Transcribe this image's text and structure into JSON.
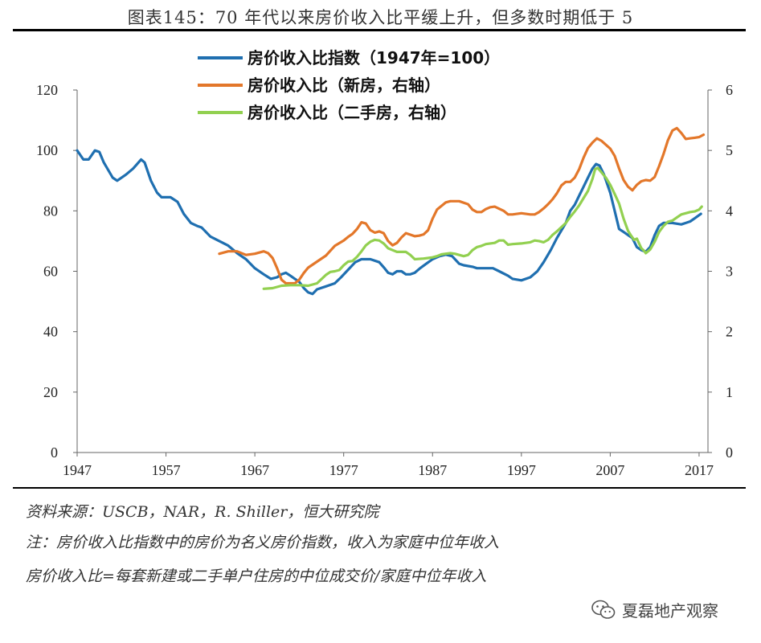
{
  "title": "图表145：70 年代以来房价收入比平缓上升，但多数时期低于 5",
  "source": "资料来源：USCB，NAR，R. Shiller，恒大研究院",
  "note1": "注：房价收入比指数中的房价为名义房价指数，收入为家庭中位年收入",
  "note2": "房价收入比=每套新建或二手单户住房的中位成交价/家庭中位年收入",
  "watermark": "夏磊地产观察",
  "chart_data": {
    "type": "line",
    "x_range": [
      1947,
      2018
    ],
    "x_ticks": [
      1947,
      1957,
      1967,
      1977,
      1987,
      1997,
      2007,
      2017
    ],
    "y_left": {
      "range": [
        0,
        120
      ],
      "ticks": [
        0,
        20,
        40,
        60,
        80,
        100,
        120
      ]
    },
    "y_right": {
      "range": [
        0,
        6
      ],
      "ticks": [
        0,
        1,
        2,
        3,
        4,
        5,
        6
      ]
    },
    "grid": false,
    "legend_position": "top-center",
    "series": [
      {
        "name": "房价收入比指数（1947年=100）",
        "axis": "left",
        "color": "#1f6fb0",
        "points": [
          [
            1947,
            100
          ],
          [
            1947.7,
            97
          ],
          [
            1948.3,
            97
          ],
          [
            1949,
            100
          ],
          [
            1949.5,
            99.5
          ],
          [
            1950,
            96
          ],
          [
            1951,
            91
          ],
          [
            1951.5,
            90
          ],
          [
            1952.5,
            92
          ],
          [
            1953.3,
            94
          ],
          [
            1954.2,
            97
          ],
          [
            1954.6,
            96
          ],
          [
            1955.3,
            90
          ],
          [
            1956,
            86
          ],
          [
            1956.5,
            84.5
          ],
          [
            1957.5,
            84.5
          ],
          [
            1958.3,
            83
          ],
          [
            1959,
            79
          ],
          [
            1959.8,
            76
          ],
          [
            1960.5,
            75
          ],
          [
            1961,
            74.5
          ],
          [
            1961.5,
            73
          ],
          [
            1962,
            71.5
          ],
          [
            1963,
            70
          ],
          [
            1964,
            68.5
          ],
          [
            1965,
            66
          ],
          [
            1966,
            64
          ],
          [
            1967,
            61
          ],
          [
            1968,
            59
          ],
          [
            1968.8,
            57.5
          ],
          [
            1969.5,
            58
          ],
          [
            1970,
            59
          ],
          [
            1970.5,
            59.5
          ],
          [
            1971,
            58.5
          ],
          [
            1971.5,
            57.5
          ],
          [
            1972,
            56.5
          ],
          [
            1972.5,
            54.5
          ],
          [
            1973,
            53
          ],
          [
            1973.5,
            52.5
          ],
          [
            1974,
            54
          ],
          [
            1975,
            55
          ],
          [
            1976,
            56
          ],
          [
            1976.7,
            58
          ],
          [
            1977.5,
            60.5
          ],
          [
            1978.3,
            63
          ],
          [
            1979,
            64
          ],
          [
            1980,
            64
          ],
          [
            1981,
            63
          ],
          [
            1981.6,
            61
          ],
          [
            1982,
            59.5
          ],
          [
            1982.5,
            59
          ],
          [
            1983,
            60
          ],
          [
            1983.5,
            60
          ],
          [
            1984,
            59
          ],
          [
            1984.5,
            59
          ],
          [
            1985,
            59.5
          ],
          [
            1985.6,
            61
          ],
          [
            1986.3,
            62.5
          ],
          [
            1987,
            64
          ],
          [
            1987.8,
            65
          ],
          [
            1988.5,
            65.5
          ],
          [
            1989.2,
            65
          ],
          [
            1990,
            62.5
          ],
          [
            1990.5,
            62
          ],
          [
            1991.5,
            61.5
          ],
          [
            1992,
            61
          ],
          [
            1993,
            61
          ],
          [
            1993.8,
            61
          ],
          [
            1994.5,
            60
          ],
          [
            1995.5,
            58.5
          ],
          [
            1996,
            57.5
          ],
          [
            1997,
            57
          ],
          [
            1998,
            58
          ],
          [
            1998.8,
            60
          ],
          [
            1999.5,
            63
          ],
          [
            2000.3,
            67
          ],
          [
            2001,
            71
          ],
          [
            2002,
            76
          ],
          [
            2002.5,
            80
          ],
          [
            2003,
            82
          ],
          [
            2003.5,
            85
          ],
          [
            2004,
            88
          ],
          [
            2004.5,
            91
          ],
          [
            2005,
            94
          ],
          [
            2005.4,
            95.5
          ],
          [
            2005.8,
            95
          ],
          [
            2006.3,
            92
          ],
          [
            2007,
            86
          ],
          [
            2007.5,
            80
          ],
          [
            2008,
            74
          ],
          [
            2008.5,
            73
          ],
          [
            2009,
            72
          ],
          [
            2009.5,
            71
          ],
          [
            2010,
            68
          ],
          [
            2010.5,
            67
          ],
          [
            2011,
            66.5
          ],
          [
            2011.5,
            68
          ],
          [
            2012,
            72
          ],
          [
            2012.5,
            75
          ],
          [
            2013,
            76
          ],
          [
            2013.5,
            76
          ],
          [
            2014,
            76
          ],
          [
            2015,
            75.5
          ],
          [
            2015.5,
            76
          ],
          [
            2016,
            76.5
          ],
          [
            2016.5,
            77.5
          ],
          [
            2017.2,
            79
          ]
        ]
      },
      {
        "name": "房价收入比（新房，右轴）",
        "axis": "right",
        "color": "#e3772a",
        "points": [
          [
            1963,
            3.29
          ],
          [
            1964,
            3.33
          ],
          [
            1965,
            3.33
          ],
          [
            1966,
            3.27
          ],
          [
            1967,
            3.29
          ],
          [
            1967.5,
            3.31
          ],
          [
            1968,
            3.33
          ],
          [
            1968.5,
            3.3
          ],
          [
            1969,
            3.22
          ],
          [
            1969.5,
            3.05
          ],
          [
            1970,
            2.86
          ],
          [
            1970.5,
            2.8
          ],
          [
            1971,
            2.8
          ],
          [
            1971.5,
            2.8
          ],
          [
            1972,
            2.86
          ],
          [
            1972.5,
            2.97
          ],
          [
            1973,
            3.06
          ],
          [
            1974,
            3.16
          ],
          [
            1975,
            3.26
          ],
          [
            1975.5,
            3.34
          ],
          [
            1976,
            3.42
          ],
          [
            1977,
            3.51
          ],
          [
            1977.5,
            3.57
          ],
          [
            1978,
            3.62
          ],
          [
            1978.5,
            3.7
          ],
          [
            1979,
            3.81
          ],
          [
            1979.5,
            3.79
          ],
          [
            1980,
            3.68
          ],
          [
            1980.5,
            3.64
          ],
          [
            1981,
            3.66
          ],
          [
            1981.5,
            3.63
          ],
          [
            1982,
            3.5
          ],
          [
            1982.5,
            3.43
          ],
          [
            1983,
            3.47
          ],
          [
            1983.5,
            3.56
          ],
          [
            1984,
            3.63
          ],
          [
            1985,
            3.58
          ],
          [
            1985.5,
            3.59
          ],
          [
            1986,
            3.61
          ],
          [
            1986.5,
            3.68
          ],
          [
            1987,
            3.87
          ],
          [
            1987.5,
            4.02
          ],
          [
            1988,
            4.08
          ],
          [
            1988.5,
            4.14
          ],
          [
            1989,
            4.16
          ],
          [
            1990,
            4.16
          ],
          [
            1991,
            4.11
          ],
          [
            1991.5,
            4.02
          ],
          [
            1992,
            3.98
          ],
          [
            1992.5,
            3.98
          ],
          [
            1993,
            4.03
          ],
          [
            1993.5,
            4.06
          ],
          [
            1994,
            4.07
          ],
          [
            1995,
            4.0
          ],
          [
            1995.5,
            3.94
          ],
          [
            1996,
            3.94
          ],
          [
            1997,
            3.96
          ],
          [
            1998,
            3.94
          ],
          [
            1998.5,
            3.94
          ],
          [
            1999,
            3.98
          ],
          [
            1999.5,
            4.04
          ],
          [
            2000,
            4.11
          ],
          [
            2000.5,
            4.19
          ],
          [
            2001,
            4.29
          ],
          [
            2001.5,
            4.42
          ],
          [
            2002,
            4.48
          ],
          [
            2002.5,
            4.48
          ],
          [
            2003,
            4.55
          ],
          [
            2003.5,
            4.69
          ],
          [
            2004,
            4.88
          ],
          [
            2004.5,
            5.04
          ],
          [
            2005,
            5.13
          ],
          [
            2005.5,
            5.2
          ],
          [
            2006,
            5.16
          ],
          [
            2007,
            5.03
          ],
          [
            2007.5,
            4.91
          ],
          [
            2008,
            4.7
          ],
          [
            2008.5,
            4.51
          ],
          [
            2009,
            4.4
          ],
          [
            2009.5,
            4.34
          ],
          [
            2010,
            4.43
          ],
          [
            2010.5,
            4.49
          ],
          [
            2011,
            4.51
          ],
          [
            2011.5,
            4.5
          ],
          [
            2012,
            4.56
          ],
          [
            2012.5,
            4.74
          ],
          [
            2013,
            4.94
          ],
          [
            2013.5,
            5.17
          ],
          [
            2014,
            5.33
          ],
          [
            2014.5,
            5.37
          ],
          [
            2015,
            5.29
          ],
          [
            2015.5,
            5.19
          ],
          [
            2016,
            5.2
          ],
          [
            2016.5,
            5.21
          ],
          [
            2017,
            5.22
          ],
          [
            2017.5,
            5.26
          ]
        ]
      },
      {
        "name": "房价收入比（二手房，右轴）",
        "axis": "right",
        "color": "#92d050",
        "points": [
          [
            1968,
            2.71
          ],
          [
            1969,
            2.72
          ],
          [
            1969.5,
            2.74
          ],
          [
            1970,
            2.76
          ],
          [
            1971,
            2.77
          ],
          [
            1972,
            2.77
          ],
          [
            1973,
            2.76
          ],
          [
            1974,
            2.8
          ],
          [
            1974.5,
            2.87
          ],
          [
            1975,
            2.94
          ],
          [
            1975.5,
            2.99
          ],
          [
            1976,
            3.0
          ],
          [
            1976.5,
            3.02
          ],
          [
            1977,
            3.1
          ],
          [
            1977.5,
            3.16
          ],
          [
            1978,
            3.17
          ],
          [
            1978.5,
            3.24
          ],
          [
            1979,
            3.33
          ],
          [
            1979.5,
            3.43
          ],
          [
            1980,
            3.49
          ],
          [
            1980.5,
            3.52
          ],
          [
            1981,
            3.51
          ],
          [
            1981.5,
            3.46
          ],
          [
            1982,
            3.38
          ],
          [
            1982.5,
            3.35
          ],
          [
            1983,
            3.32
          ],
          [
            1984,
            3.32
          ],
          [
            1984.5,
            3.27
          ],
          [
            1985,
            3.2
          ],
          [
            1986,
            3.21
          ],
          [
            1986.5,
            3.22
          ],
          [
            1987,
            3.23
          ],
          [
            1987.5,
            3.25
          ],
          [
            1988,
            3.28
          ],
          [
            1988.5,
            3.29
          ],
          [
            1989,
            3.3
          ],
          [
            1989.5,
            3.29
          ],
          [
            1990,
            3.27
          ],
          [
            1990.5,
            3.25
          ],
          [
            1991,
            3.27
          ],
          [
            1991.5,
            3.35
          ],
          [
            1992,
            3.4
          ],
          [
            1992.5,
            3.42
          ],
          [
            1993,
            3.45
          ],
          [
            1994,
            3.47
          ],
          [
            1994.5,
            3.51
          ],
          [
            1995,
            3.51
          ],
          [
            1995.5,
            3.44
          ],
          [
            1996,
            3.45
          ],
          [
            1997,
            3.46
          ],
          [
            1997.5,
            3.47
          ],
          [
            1998,
            3.48
          ],
          [
            1998.5,
            3.51
          ],
          [
            1999,
            3.5
          ],
          [
            1999.5,
            3.48
          ],
          [
            2000,
            3.52
          ],
          [
            2000.5,
            3.6
          ],
          [
            2001,
            3.66
          ],
          [
            2002,
            3.8
          ],
          [
            2002.5,
            3.9
          ],
          [
            2003,
            3.99
          ],
          [
            2003.5,
            4.09
          ],
          [
            2004,
            4.21
          ],
          [
            2004.5,
            4.33
          ],
          [
            2005,
            4.53
          ],
          [
            2005.3,
            4.69
          ],
          [
            2005.6,
            4.71
          ],
          [
            2006,
            4.64
          ],
          [
            2006.5,
            4.55
          ],
          [
            2007,
            4.43
          ],
          [
            2007.5,
            4.28
          ],
          [
            2008,
            4.12
          ],
          [
            2008.5,
            3.87
          ],
          [
            2009,
            3.67
          ],
          [
            2009.3,
            3.6
          ],
          [
            2009.7,
            3.52
          ],
          [
            2010,
            3.54
          ],
          [
            2010.5,
            3.38
          ],
          [
            2010.8,
            3.34
          ],
          [
            2011,
            3.3
          ],
          [
            2011.5,
            3.36
          ],
          [
            2012,
            3.49
          ],
          [
            2012.5,
            3.65
          ],
          [
            2013,
            3.75
          ],
          [
            2013.5,
            3.82
          ],
          [
            2014,
            3.84
          ],
          [
            2014.5,
            3.89
          ],
          [
            2015,
            3.94
          ],
          [
            2015.5,
            3.96
          ],
          [
            2016,
            3.98
          ],
          [
            2016.5,
            3.99
          ],
          [
            2017,
            4.02
          ],
          [
            2017.3,
            4.07
          ]
        ]
      }
    ]
  }
}
